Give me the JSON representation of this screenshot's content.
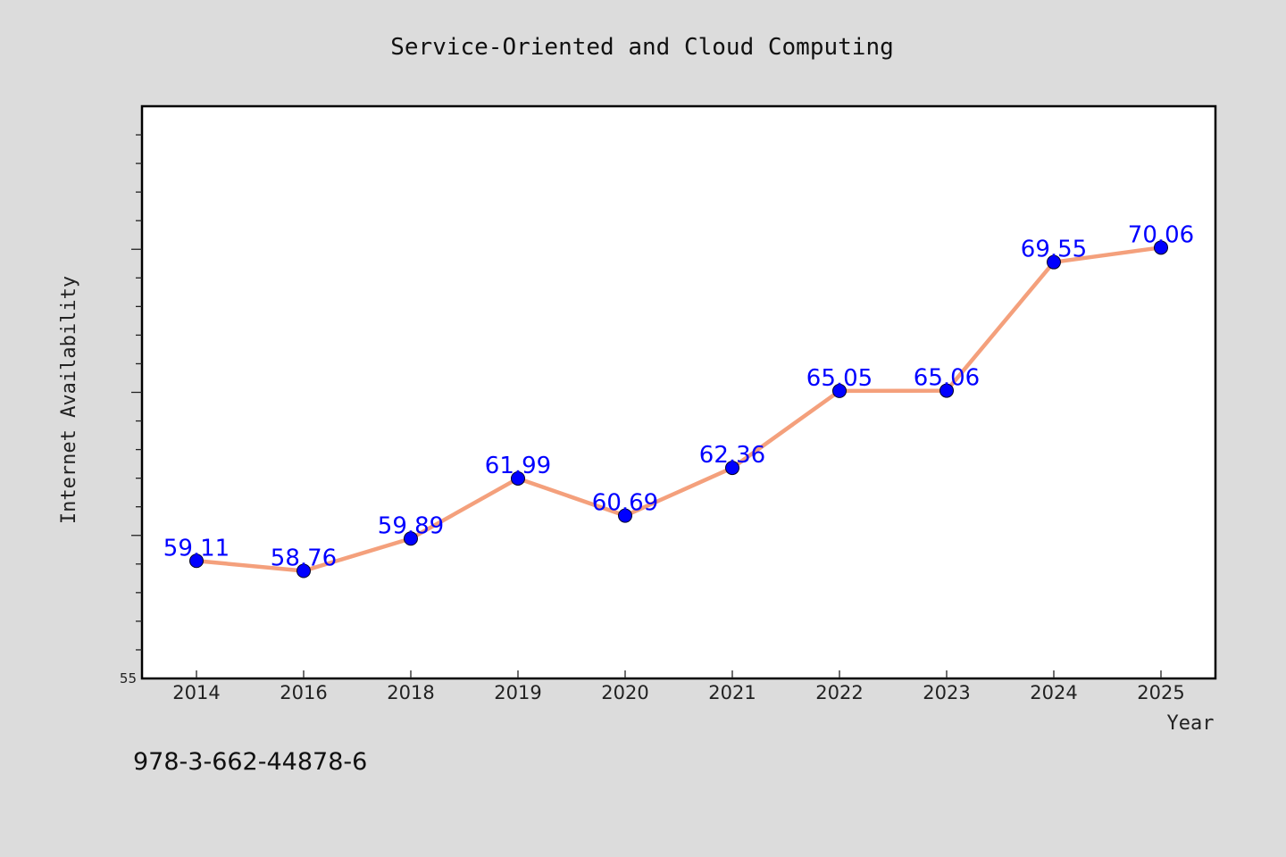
{
  "chart_data": {
    "type": "line",
    "title": "Service-Oriented and Cloud Computing",
    "xlabel": "Year",
    "ylabel": "Internet Availability",
    "categories": [
      "2014",
      "2016",
      "2018",
      "2019",
      "2020",
      "2021",
      "2022",
      "2023",
      "2024",
      "2025"
    ],
    "series": [
      {
        "values": [
          59.11,
          58.76,
          59.89,
          61.99,
          60.69,
          62.36,
          65.05,
          65.06,
          69.55,
          70.06
        ]
      }
    ],
    "data_labels": [
      "59.11",
      "58.76",
      "59.89",
      "61.99",
      "60.69",
      "62.36",
      "65.05",
      "65.06",
      "69.55",
      "70.06"
    ],
    "y_ticks": [
      55
    ],
    "y_tick_labels": [
      "55"
    ],
    "ylim": [
      55,
      75
    ],
    "y_minor_step": 1,
    "grid": false,
    "line_color": "#f4a07c",
    "marker_color": "#0000ff",
    "label_color": "#0000ff",
    "footer": "978-3-662-44878-6"
  }
}
